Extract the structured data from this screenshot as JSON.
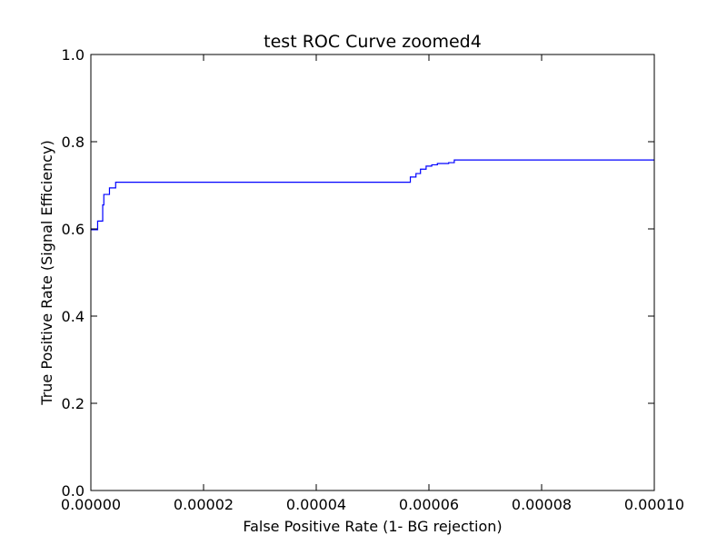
{
  "chart_data": {
    "type": "line",
    "title": "test ROC Curve zoomed4",
    "xlabel": "False Positive Rate (1- BG rejection)",
    "ylabel": "True Positive Rate (Signal Efficiency)",
    "xlim": [
      0,
      0.0001
    ],
    "ylim": [
      0,
      1.0
    ],
    "x_ticks": [
      "0.00000",
      "0.00002",
      "0.00004",
      "0.00006",
      "0.00008",
      "0.00010"
    ],
    "x_tick_values": [
      0,
      2e-05,
      4e-05,
      6e-05,
      8e-05,
      0.0001
    ],
    "y_ticks": [
      "0.0",
      "0.2",
      "0.4",
      "0.6",
      "0.8",
      "1.0"
    ],
    "y_tick_values": [
      0,
      0.2,
      0.4,
      0.6,
      0.8,
      1.0
    ],
    "grid": false,
    "line_color": "#0000ff",
    "series": [
      {
        "x": [
          0,
          1.2e-06,
          1.2e-06,
          2.1e-06,
          2.1e-06,
          2.3e-06,
          2.3e-06,
          3.3e-06,
          3.3e-06,
          4.4e-06,
          4.4e-06,
          5.67e-05,
          5.67e-05,
          5.77e-05,
          5.77e-05,
          5.85e-05,
          5.85e-05,
          5.95e-05,
          5.95e-05,
          6.05e-05,
          6.05e-05,
          6.15e-05,
          6.15e-05,
          6.35e-05,
          6.35e-05,
          6.45e-05,
          6.45e-05,
          0.0001
        ],
        "y": [
          0.598,
          0.598,
          0.618,
          0.618,
          0.655,
          0.655,
          0.679,
          0.679,
          0.694,
          0.694,
          0.707,
          0.707,
          0.719,
          0.719,
          0.727,
          0.727,
          0.737,
          0.737,
          0.744,
          0.744,
          0.747,
          0.747,
          0.75,
          0.75,
          0.752,
          0.752,
          0.758,
          0.758
        ]
      }
    ]
  }
}
